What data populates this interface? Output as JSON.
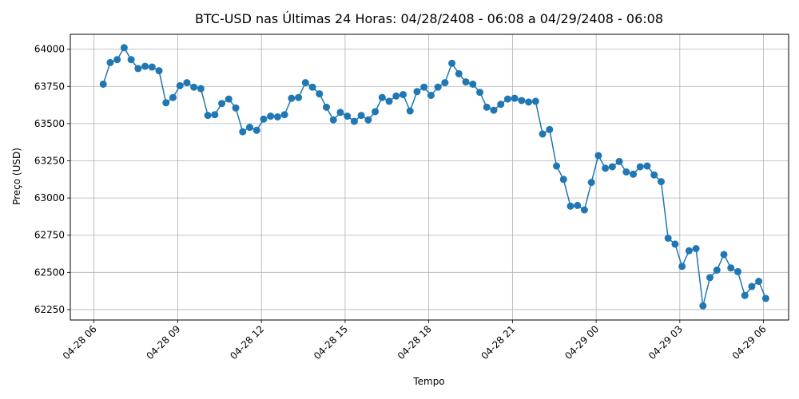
{
  "chart_data": {
    "type": "line",
    "title": "BTC-USD nas Últimas 24 Horas: 04/28/2408 - 06:08 a 04/29/2408 - 06:08",
    "xlabel": "Tempo",
    "ylabel": "Preço (USD)",
    "x_unit": "hours after 04-28 06:00",
    "xlim": [
      -0.85,
      24.9
    ],
    "ylim": [
      62180,
      64100
    ],
    "grid": true,
    "x_ticks": [
      {
        "value": 0,
        "label": "04-28 06"
      },
      {
        "value": 3,
        "label": "04-28 09"
      },
      {
        "value": 6,
        "label": "04-28 12"
      },
      {
        "value": 9,
        "label": "04-28 15"
      },
      {
        "value": 12,
        "label": "04-28 18"
      },
      {
        "value": 15,
        "label": "04-28 21"
      },
      {
        "value": 18,
        "label": "04-29 00"
      },
      {
        "value": 21,
        "label": "04-29 03"
      },
      {
        "value": 24,
        "label": "04-29 06"
      }
    ],
    "y_ticks": [
      {
        "value": 62250,
        "label": "62250"
      },
      {
        "value": 62500,
        "label": "62500"
      },
      {
        "value": 62750,
        "label": "62750"
      },
      {
        "value": 63000,
        "label": "63000"
      },
      {
        "value": 63250,
        "label": "63250"
      },
      {
        "value": 63500,
        "label": "63500"
      },
      {
        "value": 63750,
        "label": "63750"
      },
      {
        "value": 64000,
        "label": "64000"
      }
    ],
    "series": [
      {
        "name": "",
        "color": "#1f77b4",
        "x": [
          0.33,
          0.58,
          0.83,
          1.08,
          1.33,
          1.58,
          1.83,
          2.08,
          2.33,
          2.58,
          2.83,
          3.08,
          3.33,
          3.58,
          3.83,
          4.08,
          4.33,
          4.58,
          4.83,
          5.08,
          5.33,
          5.58,
          5.83,
          6.08,
          6.33,
          6.58,
          6.83,
          7.08,
          7.33,
          7.58,
          7.83,
          8.08,
          8.33,
          8.58,
          8.83,
          9.08,
          9.33,
          9.58,
          9.83,
          10.08,
          10.33,
          10.58,
          10.83,
          11.08,
          11.33,
          11.58,
          11.83,
          12.08,
          12.33,
          12.58,
          12.83,
          13.08,
          13.33,
          13.58,
          13.83,
          14.08,
          14.33,
          14.58,
          14.83,
          15.08,
          15.33,
          15.58,
          15.83,
          16.08,
          16.33,
          16.58,
          16.83,
          17.08,
          17.33,
          17.58,
          17.83,
          18.08,
          18.33,
          18.58,
          18.83,
          19.08,
          19.33,
          19.58,
          19.83,
          20.08,
          20.33,
          20.58,
          20.83,
          21.08,
          21.33,
          21.58,
          21.83,
          22.08,
          22.33,
          22.58,
          22.83,
          23.08,
          23.33,
          23.58,
          23.83,
          24.08
        ],
        "y": [
          63765,
          63910,
          63930,
          64010,
          63930,
          63870,
          63885,
          63880,
          63855,
          63640,
          63675,
          63755,
          63775,
          63745,
          63735,
          63555,
          63560,
          63635,
          63665,
          63605,
          63445,
          63475,
          63455,
          63530,
          63550,
          63545,
          63560,
          63670,
          63675,
          63775,
          63745,
          63700,
          63610,
          63525,
          63575,
          63550,
          63515,
          63555,
          63525,
          63580,
          63675,
          63650,
          63685,
          63695,
          63585,
          63715,
          63745,
          63690,
          63745,
          63775,
          63905,
          63835,
          63780,
          63765,
          63710,
          63610,
          63590,
          63630,
          63665,
          63670,
          63655,
          63645,
          63650,
          63430,
          63460,
          63215,
          63125,
          62945,
          62950,
          62920,
          63105,
          63285,
          63200,
          63210,
          63245,
          63175,
          63160,
          63210,
          63215,
          63155,
          63110,
          62730,
          62690,
          62540,
          62645,
          62660,
          62275,
          62465,
          62515,
          62620,
          62530,
          62505,
          62345,
          62405,
          62440,
          62325
        ]
      }
    ]
  }
}
